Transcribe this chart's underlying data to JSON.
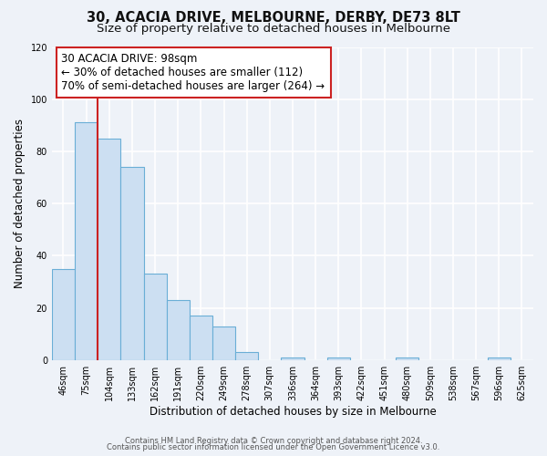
{
  "title": "30, ACACIA DRIVE, MELBOURNE, DERBY, DE73 8LT",
  "subtitle": "Size of property relative to detached houses in Melbourne",
  "xlabel": "Distribution of detached houses by size in Melbourne",
  "ylabel": "Number of detached properties",
  "footer_line1": "Contains HM Land Registry data © Crown copyright and database right 2024.",
  "footer_line2": "Contains public sector information licensed under the Open Government Licence v3.0.",
  "bar_labels": [
    "46sqm",
    "75sqm",
    "104sqm",
    "133sqm",
    "162sqm",
    "191sqm",
    "220sqm",
    "249sqm",
    "278sqm",
    "307sqm",
    "336sqm",
    "364sqm",
    "393sqm",
    "422sqm",
    "451sqm",
    "480sqm",
    "509sqm",
    "538sqm",
    "567sqm",
    "596sqm",
    "625sqm"
  ],
  "bar_values": [
    35,
    91,
    85,
    74,
    33,
    23,
    17,
    13,
    3,
    0,
    1,
    0,
    1,
    0,
    0,
    1,
    0,
    0,
    0,
    1,
    0
  ],
  "bar_color": "#ccdff2",
  "bar_edge_color": "#6aaed6",
  "ylim": [
    0,
    120
  ],
  "yticks": [
    0,
    20,
    40,
    60,
    80,
    100,
    120
  ],
  "vline_x": 1.5,
  "vline_color": "#cc2222",
  "annotation_title": "30 ACACIA DRIVE: 98sqm",
  "annotation_line1": "← 30% of detached houses are smaller (112)",
  "annotation_line2": "70% of semi-detached houses are larger (264) →",
  "background_color": "#eef2f8",
  "plot_bg_color": "#eef2f8",
  "grid_color": "#ffffff",
  "title_fontsize": 10.5,
  "subtitle_fontsize": 9.5,
  "axis_label_fontsize": 8.5,
  "tick_fontsize": 7,
  "annotation_fontsize": 8.5,
  "footer_fontsize": 6
}
